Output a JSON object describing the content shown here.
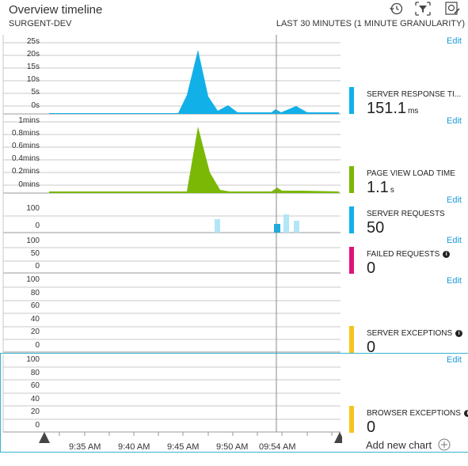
{
  "header": {
    "title": "Overview timeline",
    "subtitle": "SURGENT-DEV",
    "range": "LAST 30 MINUTES (1 MINUTE GRANULARITY)",
    "icons": [
      "history-icon",
      "filter-icon",
      "settings-icon"
    ]
  },
  "colors": {
    "response": "#11b0e8",
    "pageview": "#7bb806",
    "requests": "#11b0e8",
    "requests_light": "#b3e5f7",
    "failed": "#e0127a",
    "exceptions": "#f4c51e",
    "accent": "#1f9bd6"
  },
  "panels": {
    "response": {
      "edit": "Edit",
      "ticks": [
        "25s",
        "20s",
        "15s",
        "10s",
        "5s",
        "0s"
      ],
      "metric_name": "SERVER RESPONSE TI...",
      "metric_value": "151.1",
      "metric_unit": "ms"
    },
    "pageview": {
      "edit": "Edit",
      "ticks": [
        "1mins",
        "0.8mins",
        "0.6mins",
        "0.4mins",
        "0.2mins",
        "0mins"
      ],
      "metric_name": "PAGE VIEW LOAD TIME",
      "metric_value": "1.1",
      "metric_unit": "s"
    },
    "requests": {
      "edit": "Edit",
      "ticks": [
        "100",
        "0"
      ],
      "metric_name": "SERVER REQUESTS",
      "metric_value": "50"
    },
    "failed": {
      "edit": "Edit",
      "ticks": [
        "100",
        "50",
        "0"
      ],
      "metric_name": "FAILED REQUESTS",
      "metric_value": "0"
    },
    "server_exceptions": {
      "edit": "Edit",
      "ticks": [
        "100",
        "80",
        "60",
        "40",
        "20",
        "0"
      ],
      "metric_name": "SERVER EXCEPTIONS",
      "metric_value": "0"
    },
    "browser_exceptions": {
      "edit": "Edit",
      "ticks": [
        "100",
        "80",
        "60",
        "40",
        "20",
        "0"
      ],
      "metric_name": "BROWSER EXCEPTIONS",
      "metric_value": "0"
    }
  },
  "x_axis": {
    "ticks": [
      "9:35 AM",
      "9:40 AM",
      "9:45 AM",
      "9:50 AM",
      "09:54 AM"
    ]
  },
  "add_chart": "Add new chart"
}
